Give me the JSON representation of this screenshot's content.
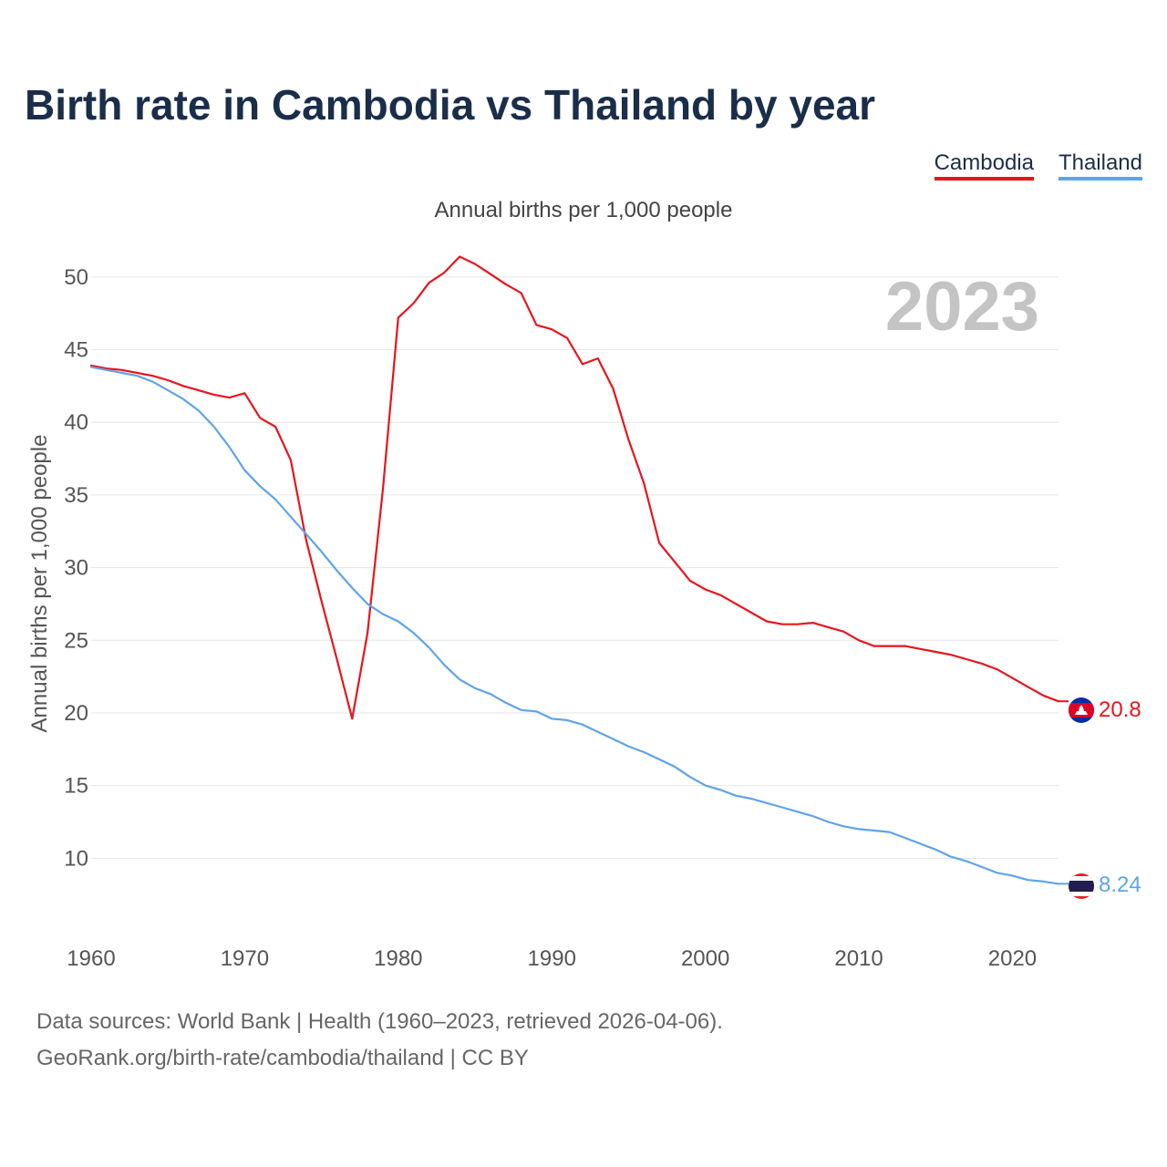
{
  "title": "Birth rate in Cambodia vs Thailand by year",
  "legend": [
    {
      "name": "Cambodia",
      "color": "#e8141c"
    },
    {
      "name": "Thailand",
      "color": "#5ea4e8"
    }
  ],
  "subtitle": "Annual births per 1,000 people",
  "year_watermark": "2023",
  "footer": {
    "source": "Data sources: World Bank | Health (1960–2023, retrieved 2026-04-06).",
    "link": "GeoRank.org/birth-rate/cambodia/thailand | CC BY"
  },
  "chart_data": {
    "type": "line",
    "title": "Birth rate in Cambodia vs Thailand by year",
    "subtitle": "Annual births per 1,000 people",
    "ylabel": "Annual births per 1,000 people",
    "xlabel": "",
    "xlim": [
      1960,
      2023
    ],
    "ylim": [
      5,
      53
    ],
    "yticks": [
      10,
      15,
      20,
      25,
      30,
      35,
      40,
      45,
      50
    ],
    "xticks": [
      1960,
      1970,
      1980,
      1990,
      2000,
      2010,
      2020
    ],
    "grid": true,
    "x": [
      1960,
      1961,
      1962,
      1963,
      1964,
      1965,
      1966,
      1967,
      1968,
      1969,
      1970,
      1971,
      1972,
      1973,
      1974,
      1975,
      1976,
      1977,
      1978,
      1979,
      1980,
      1981,
      1982,
      1983,
      1984,
      1985,
      1986,
      1987,
      1988,
      1989,
      1990,
      1991,
      1992,
      1993,
      1994,
      1995,
      1996,
      1997,
      1998,
      1999,
      2000,
      2001,
      2002,
      2003,
      2004,
      2005,
      2006,
      2007,
      2008,
      2009,
      2010,
      2011,
      2012,
      2013,
      2014,
      2015,
      2016,
      2017,
      2018,
      2019,
      2020,
      2021,
      2022,
      2023
    ],
    "series": [
      {
        "name": "Cambodia",
        "color": "#e8141c",
        "end_label": "20.8",
        "values": [
          43.9,
          43.7,
          43.6,
          43.4,
          43.2,
          42.9,
          42.5,
          42.2,
          41.9,
          41.7,
          42.0,
          40.3,
          39.7,
          37.4,
          31.9,
          27.7,
          23.7,
          19.6,
          25.5,
          35.4,
          47.2,
          48.2,
          49.6,
          50.3,
          51.4,
          50.9,
          50.2,
          49.5,
          48.9,
          46.7,
          46.4,
          45.8,
          44.0,
          44.4,
          42.3,
          38.8,
          35.8,
          31.7,
          30.4,
          29.1,
          28.5,
          28.1,
          27.5,
          26.9,
          26.3,
          26.1,
          26.1,
          26.2,
          25.9,
          25.6,
          25.0,
          24.6,
          24.6,
          24.6,
          24.4,
          24.2,
          24.0,
          23.7,
          23.4,
          23.0,
          22.4,
          21.8,
          21.2,
          20.8
        ]
      },
      {
        "name": "Thailand",
        "color": "#5ea4e8",
        "end_label": "8.24",
        "values": [
          43.8,
          43.6,
          43.4,
          43.2,
          42.8,
          42.2,
          41.6,
          40.8,
          39.7,
          38.3,
          36.7,
          35.6,
          34.7,
          33.5,
          32.3,
          31.1,
          29.8,
          28.6,
          27.5,
          26.8,
          26.3,
          25.5,
          24.5,
          23.3,
          22.3,
          21.7,
          21.3,
          20.7,
          20.2,
          20.1,
          19.6,
          19.5,
          19.2,
          18.7,
          18.2,
          17.7,
          17.3,
          16.8,
          16.3,
          15.6,
          15.0,
          14.7,
          14.3,
          14.1,
          13.8,
          13.5,
          13.2,
          12.9,
          12.5,
          12.2,
          12.0,
          11.9,
          11.8,
          11.4,
          11.0,
          10.6,
          10.1,
          9.8,
          9.4,
          9.0,
          8.8,
          8.5,
          8.4,
          8.24
        ]
      }
    ]
  }
}
